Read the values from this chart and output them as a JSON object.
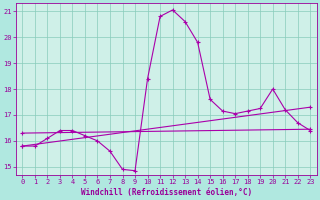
{
  "background_color": "#b0e8e0",
  "plot_bg_color": "#cff0e8",
  "grid_color": "#88ccbb",
  "line_color": "#aa00aa",
  "marker": "+",
  "markersize": 3,
  "markeredgewidth": 0.8,
  "linewidth": 0.8,
  "xlim": [
    -0.5,
    23.5
  ],
  "ylim": [
    14.7,
    21.3
  ],
  "xlabel": "Windchill (Refroidissement éolien,°C)",
  "xlabel_fontsize": 5.5,
  "tick_fontsize": 5,
  "tick_color": "#990099",
  "label_color": "#990099",
  "spine_color": "#990099",
  "series1_x": [
    0,
    1,
    2,
    3,
    4,
    5,
    6,
    7,
    8,
    9,
    10,
    11,
    12,
    13,
    14,
    15,
    16,
    17,
    18,
    19,
    20,
    21,
    22,
    23
  ],
  "series1_y": [
    15.8,
    15.8,
    16.1,
    16.4,
    16.4,
    16.2,
    16.0,
    15.6,
    14.9,
    14.85,
    18.4,
    20.8,
    21.05,
    20.6,
    19.8,
    17.6,
    17.15,
    17.05,
    17.15,
    17.25,
    18.0,
    17.2,
    16.7,
    16.4
  ],
  "series2_x": [
    0,
    23
  ],
  "series2_y": [
    16.3,
    16.45
  ],
  "series3_x": [
    0,
    23
  ],
  "series3_y": [
    15.8,
    17.3
  ],
  "yticks": [
    15,
    16,
    17,
    18,
    19,
    20,
    21
  ],
  "xticks": [
    0,
    1,
    2,
    3,
    4,
    5,
    6,
    7,
    8,
    9,
    10,
    11,
    12,
    13,
    14,
    15,
    16,
    17,
    18,
    19,
    20,
    21,
    22,
    23
  ]
}
